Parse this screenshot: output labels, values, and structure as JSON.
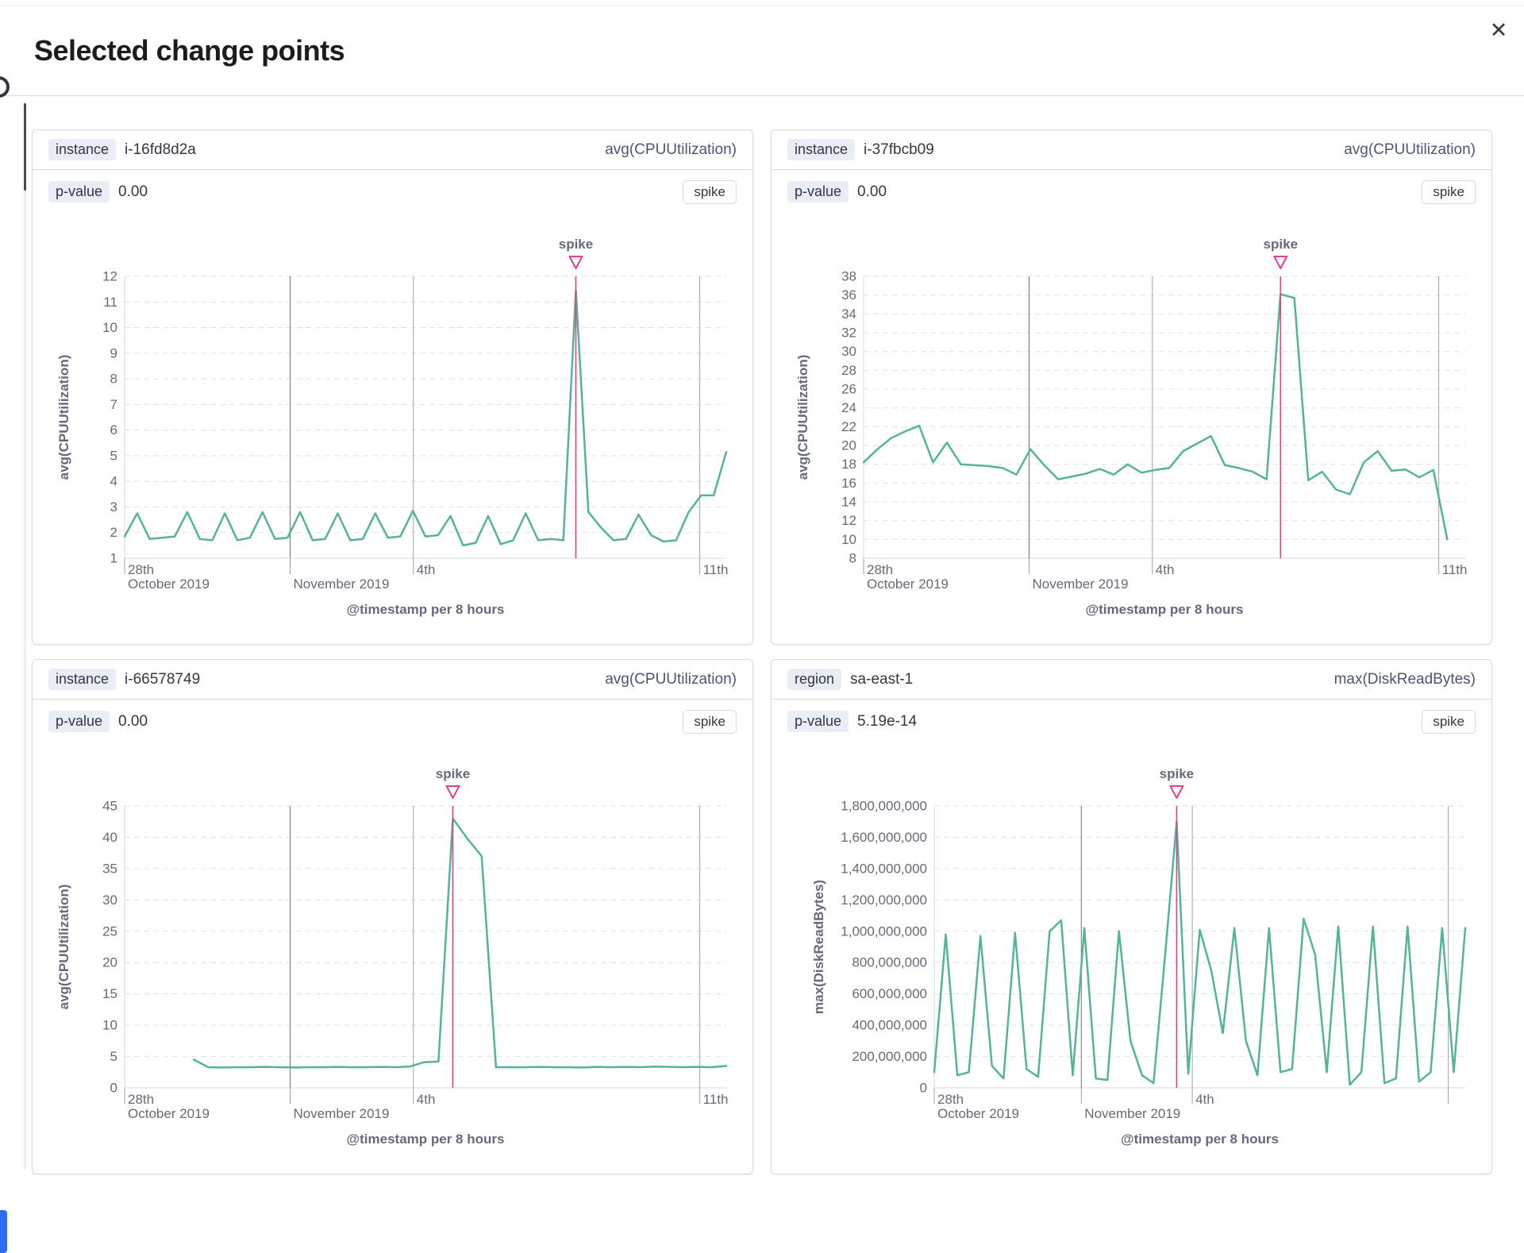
{
  "modal": {
    "title": "Selected change points",
    "close_label": "✕"
  },
  "colors": {
    "line": "#54b399",
    "annotation": "#e0418a",
    "grid_light": "#dbe1ec",
    "grid_axis": "#d3dae6",
    "grid_dark": "#69707d",
    "grid_mid": "#9aa3b5",
    "tick": "#98a2b3"
  },
  "panels": [
    {
      "field_label": "instance",
      "field_value": "i-16fd8d2a",
      "metric_label": "avg(CPUUtilization)",
      "p_label": "p-value",
      "p_value": "0.00",
      "change_type": "spike"
    },
    {
      "field_label": "instance",
      "field_value": "i-37fbcb09",
      "metric_label": "avg(CPUUtilization)",
      "p_label": "p-value",
      "p_value": "0.00",
      "change_type": "spike"
    },
    {
      "field_label": "instance",
      "field_value": "i-66578749",
      "metric_label": "avg(CPUUtilization)",
      "p_label": "p-value",
      "p_value": "0.00",
      "change_type": "spike"
    },
    {
      "field_label": "region",
      "field_value": "sa-east-1",
      "metric_label": "max(DiskReadBytes)",
      "p_label": "p-value",
      "p_value": "5.19e-14",
      "change_type": "spike"
    }
  ],
  "chart_data": [
    {
      "type": "line",
      "title": "instance i-16fd8d2a avg(CPUUtilization)",
      "xlabel": "@timestamp per 8 hours",
      "ylabel": "avg(CPUUtilization)",
      "ylim": [
        1,
        12
      ],
      "yticks": [
        1,
        2,
        3,
        4,
        5,
        6,
        7,
        8,
        9,
        10,
        11,
        12
      ],
      "ytick_labels": [
        "1",
        "2",
        "3",
        "4",
        "5",
        "6",
        "7",
        "8",
        "9",
        "10",
        "11",
        "12"
      ],
      "xticks": [
        {
          "f": 0.0,
          "line1": "28th",
          "line2": "October 2019",
          "style": "axis"
        },
        {
          "f": 0.275,
          "line1": "",
          "line2": "November 2019",
          "style": "dark"
        },
        {
          "f": 0.48,
          "line1": "4th",
          "line2": "",
          "style": "mid"
        },
        {
          "f": 0.956,
          "line1": "11th",
          "line2": "",
          "style": "mid"
        }
      ],
      "x_start": 0,
      "x_end": 1,
      "values": [
        1.85,
        2.75,
        1.75,
        1.8,
        1.85,
        2.8,
        1.75,
        1.7,
        2.75,
        1.7,
        1.8,
        2.8,
        1.75,
        1.8,
        2.8,
        1.7,
        1.75,
        2.75,
        1.7,
        1.75,
        2.75,
        1.8,
        1.85,
        2.85,
        1.85,
        1.9,
        2.65,
        1.5,
        1.6,
        2.65,
        1.55,
        1.7,
        2.75,
        1.7,
        1.75,
        1.7,
        11.45,
        2.8,
        2.2,
        1.7,
        1.75,
        2.7,
        1.9,
        1.65,
        1.7,
        2.8,
        3.45,
        3.45,
        5.15
      ],
      "annotation": {
        "label": "spike",
        "f": 0.75
      }
    },
    {
      "type": "line",
      "title": "instance i-37fbcb09 avg(CPUUtilization)",
      "xlabel": "@timestamp per 8 hours",
      "ylabel": "avg(CPUUtilization)",
      "ylim": [
        8,
        38
      ],
      "yticks": [
        8,
        10,
        12,
        14,
        16,
        18,
        20,
        22,
        24,
        26,
        28,
        30,
        32,
        34,
        36,
        38
      ],
      "ytick_labels": [
        "8",
        "10",
        "12",
        "14",
        "16",
        "18",
        "20",
        "22",
        "24",
        "26",
        "28",
        "30",
        "32",
        "34",
        "36",
        "38"
      ],
      "xticks": [
        {
          "f": 0.0,
          "line1": "28th",
          "line2": "October 2019",
          "style": "axis"
        },
        {
          "f": 0.275,
          "line1": "",
          "line2": "November 2019",
          "style": "dark"
        },
        {
          "f": 0.48,
          "line1": "4th",
          "line2": "",
          "style": "mid"
        },
        {
          "f": 0.956,
          "line1": "11th",
          "line2": "",
          "style": "mid"
        }
      ],
      "x_start": 0,
      "x_end": 0.97,
      "values": [
        18.2,
        19.6,
        20.8,
        21.5,
        22.1,
        18.2,
        20.3,
        18.0,
        17.9,
        17.8,
        17.6,
        16.9,
        19.6,
        17.9,
        16.4,
        16.7,
        17.0,
        17.5,
        16.9,
        18.0,
        17.1,
        17.4,
        17.6,
        19.4,
        20.2,
        21.0,
        17.9,
        17.6,
        17.2,
        16.4,
        36.1,
        35.7,
        16.3,
        17.2,
        15.3,
        14.8,
        18.2,
        19.4,
        17.3,
        17.45,
        16.6,
        17.4,
        10.0
      ],
      "annotation": {
        "label": "spike",
        "f": 0.693
      }
    },
    {
      "type": "line",
      "title": "instance i-66578749 avg(CPUUtilization)",
      "xlabel": "@timestamp per 8 hours",
      "ylabel": "avg(CPUUtilization)",
      "ylim": [
        0,
        45
      ],
      "yticks": [
        0,
        5,
        10,
        15,
        20,
        25,
        30,
        35,
        40,
        45
      ],
      "ytick_labels": [
        "0",
        "5",
        "10",
        "15",
        "20",
        "25",
        "30",
        "35",
        "40",
        "45"
      ],
      "xticks": [
        {
          "f": 0.0,
          "line1": "28th",
          "line2": "October 2019",
          "style": "axis"
        },
        {
          "f": 0.275,
          "line1": "",
          "line2": "November 2019",
          "style": "dark"
        },
        {
          "f": 0.48,
          "line1": "4th",
          "line2": "",
          "style": "mid"
        },
        {
          "f": 0.956,
          "line1": "11th",
          "line2": "",
          "style": "mid"
        }
      ],
      "x_start": 0.115,
      "x_end": 1,
      "values": [
        4.5,
        3.3,
        3.25,
        3.3,
        3.3,
        3.35,
        3.3,
        3.25,
        3.3,
        3.3,
        3.35,
        3.3,
        3.3,
        3.35,
        3.3,
        3.4,
        4.1,
        4.2,
        43.0,
        39.8,
        37.0,
        3.3,
        3.3,
        3.3,
        3.35,
        3.3,
        3.3,
        3.25,
        3.35,
        3.3,
        3.35,
        3.3,
        3.4,
        3.35,
        3.3,
        3.35,
        3.3,
        3.5
      ],
      "annotation": {
        "label": "spike",
        "f": 0.5455
      }
    },
    {
      "type": "line",
      "title": "region sa-east-1 max(DiskReadBytes)",
      "xlabel": "@timestamp per 8 hours",
      "ylabel": "max(DiskReadBytes)",
      "ylim": [
        0,
        1800000000
      ],
      "yticks": [
        0,
        200000000,
        400000000,
        600000000,
        800000000,
        1000000000,
        1200000000,
        1400000000,
        1600000000,
        1800000000
      ],
      "ytick_labels": [
        "0",
        "200,000,000",
        "400,000,000",
        "600,000,000",
        "800,000,000",
        "1,000,000,000",
        "1,200,000,000",
        "1,400,000,000",
        "1,600,000,000",
        "1,800,000,000"
      ],
      "xticks": [
        {
          "f": 0.0,
          "line1": "28th",
          "line2": "October 2019",
          "style": "axis"
        },
        {
          "f": 0.277,
          "line1": "",
          "line2": "November 2019",
          "style": "dark"
        },
        {
          "f": 0.486,
          "line1": "4th",
          "line2": "",
          "style": "mid"
        },
        {
          "f": 0.968,
          "line1": "",
          "line2": "",
          "style": "mid"
        }
      ],
      "x_start": 0,
      "x_end": 1,
      "values": [
        100000000,
        980000000,
        80000000,
        100000000,
        970000000,
        140000000,
        60000000,
        990000000,
        120000000,
        70000000,
        1000000000,
        1070000000,
        80000000,
        1020000000,
        60000000,
        50000000,
        1000000000,
        300000000,
        80000000,
        30000000,
        850000000,
        1700000000,
        90000000,
        1010000000,
        750000000,
        350000000,
        1020000000,
        300000000,
        80000000,
        1020000000,
        100000000,
        120000000,
        1080000000,
        850000000,
        100000000,
        1030000000,
        20000000,
        100000000,
        1030000000,
        30000000,
        60000000,
        1030000000,
        40000000,
        100000000,
        1020000000,
        100000000,
        1020000000
      ],
      "annotation": {
        "label": "spike",
        "f": 0.4565
      }
    }
  ]
}
